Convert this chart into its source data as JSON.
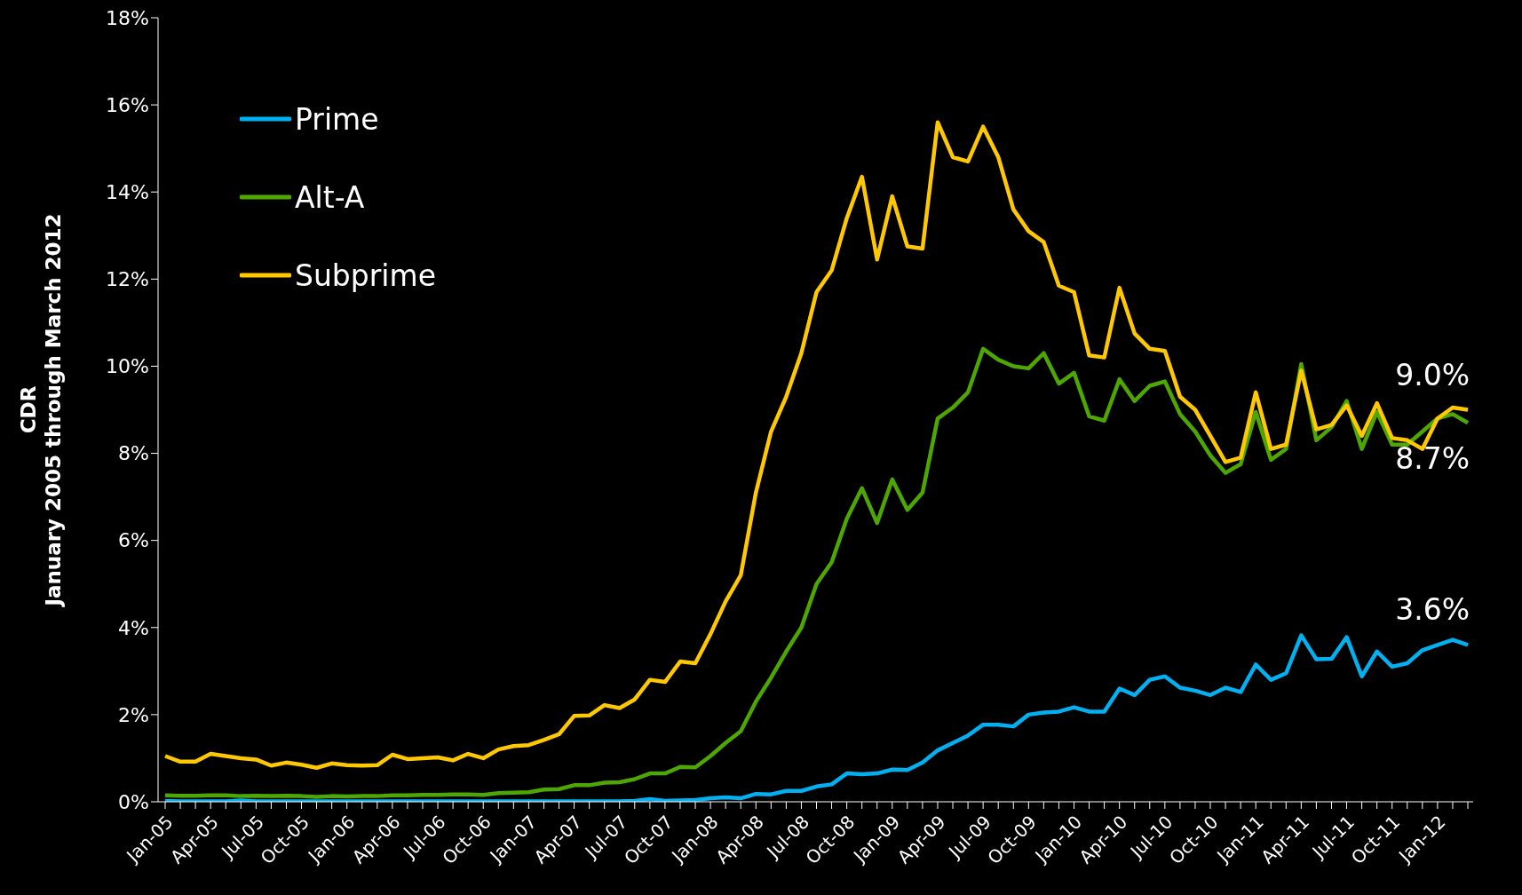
{
  "chart_data": {
    "type": "line",
    "ylabel": "CDR\nJanuary 2005 through March 2012",
    "categories": [
      "Jan-05",
      null,
      null,
      "Apr-05",
      null,
      null,
      "Jul-05",
      null,
      null,
      "Oct-05",
      null,
      null,
      "Jan-06",
      null,
      null,
      "Apr-06",
      null,
      null,
      "Jul-06",
      null,
      null,
      "Oct-06",
      null,
      null,
      "Jan-07",
      null,
      null,
      "Apr-07",
      null,
      null,
      "Jul-07",
      null,
      null,
      "Oct-07",
      null,
      null,
      "Jan-08",
      null,
      null,
      "Apr-08",
      null,
      null,
      "Jul-08",
      null,
      null,
      "Oct-08",
      null,
      null,
      "Jan-09",
      null,
      null,
      "Apr-09",
      null,
      null,
      "Jul-09",
      null,
      null,
      "Oct-09",
      null,
      null,
      "Jan-10",
      null,
      null,
      "Apr-10",
      null,
      null,
      "Jul-10",
      null,
      null,
      "Oct-10",
      null,
      null,
      "Jan-11",
      null,
      null,
      "Apr-11",
      null,
      null,
      "Jul-11",
      null,
      null,
      "Oct-11",
      null,
      null,
      "Jan-12",
      null,
      null
    ],
    "series": [
      {
        "name": "Prime",
        "color": "#00b0f0",
        "values": [
          0.02,
          0.01,
          0.01,
          0.01,
          0.01,
          0.03,
          0.01,
          0.01,
          0.01,
          0.01,
          0.01,
          0.01,
          0.01,
          0.01,
          0.01,
          0.01,
          0.01,
          0.01,
          0.01,
          0.01,
          0.01,
          0.01,
          0.01,
          0.01,
          0.01,
          0.01,
          0.01,
          0.01,
          0.01,
          0.01,
          0.01,
          0.02,
          0.06,
          0.02,
          0.03,
          0.04,
          0.08,
          0.1,
          0.08,
          0.18,
          0.17,
          0.25,
          0.25,
          0.35,
          0.4,
          0.65,
          0.63,
          0.65,
          0.74,
          0.73,
          0.9,
          1.18,
          1.35,
          1.52,
          1.77,
          1.77,
          1.73,
          2.0,
          2.05,
          2.07,
          2.17,
          2.07,
          2.07,
          2.6,
          2.45,
          2.8,
          2.88,
          2.62,
          2.55,
          2.45,
          2.62,
          2.52,
          3.15,
          2.8,
          2.95,
          3.82,
          3.27,
          3.28,
          3.78,
          2.88,
          3.45,
          3.1,
          3.18,
          3.48,
          3.6,
          3.72,
          3.6
        ],
        "value_labels": [
          null,
          null,
          null,
          null,
          null,
          null,
          null,
          null,
          null,
          null,
          null,
          null,
          null,
          null,
          null,
          null,
          null,
          null,
          null,
          null,
          null,
          null,
          null,
          null,
          null,
          null,
          null,
          null,
          null,
          null,
          null,
          null,
          null,
          null,
          null,
          null,
          null,
          null,
          null,
          null,
          null,
          null,
          null,
          null,
          null,
          null,
          null,
          null,
          null,
          null,
          null,
          null,
          null,
          null,
          null,
          null,
          null,
          null,
          null,
          null,
          null,
          null,
          null,
          null,
          null,
          null,
          null,
          null,
          null,
          null,
          null,
          null,
          null,
          null,
          null,
          null,
          null,
          null,
          null,
          null,
          null,
          null,
          null,
          null,
          null,
          null,
          "3.6%"
        ]
      },
      {
        "name": "Alt-A",
        "color": "#4ea600",
        "values": [
          0.15,
          0.14,
          0.14,
          0.15,
          0.15,
          0.13,
          0.14,
          0.13,
          0.14,
          0.13,
          0.11,
          0.13,
          0.12,
          0.13,
          0.13,
          0.15,
          0.15,
          0.16,
          0.16,
          0.17,
          0.17,
          0.16,
          0.2,
          0.21,
          0.22,
          0.28,
          0.29,
          0.38,
          0.38,
          0.44,
          0.45,
          0.52,
          0.65,
          0.65,
          0.8,
          0.79,
          1.05,
          1.35,
          1.62,
          2.3,
          2.85,
          3.45,
          4.0,
          5.0,
          5.5,
          6.5,
          7.2,
          6.4,
          7.4,
          6.7,
          7.1,
          8.8,
          9.05,
          9.4,
          10.4,
          10.15,
          10.0,
          9.95,
          10.3,
          9.6,
          9.85,
          8.85,
          8.75,
          9.7,
          9.2,
          9.55,
          9.65,
          8.9,
          8.5,
          7.95,
          7.55,
          7.75,
          8.95,
          7.85,
          8.1,
          10.05,
          8.3,
          8.6,
          9.2,
          8.1,
          8.95,
          8.2,
          8.2,
          8.5,
          8.8,
          8.9,
          8.7
        ],
        "value_labels": [
          null,
          null,
          null,
          null,
          null,
          null,
          null,
          null,
          null,
          null,
          null,
          null,
          null,
          null,
          null,
          null,
          null,
          null,
          null,
          null,
          null,
          null,
          null,
          null,
          null,
          null,
          null,
          null,
          null,
          null,
          null,
          null,
          null,
          null,
          null,
          null,
          null,
          null,
          null,
          null,
          null,
          null,
          null,
          null,
          null,
          null,
          null,
          null,
          null,
          null,
          null,
          null,
          null,
          null,
          null,
          null,
          null,
          null,
          null,
          null,
          null,
          null,
          null,
          null,
          null,
          null,
          null,
          null,
          null,
          null,
          null,
          null,
          null,
          null,
          null,
          null,
          null,
          null,
          null,
          null,
          null,
          null,
          null,
          null,
          null,
          null,
          "8.7%"
        ]
      },
      {
        "name": "Subprime",
        "color": "#ffc800",
        "values": [
          1.05,
          0.92,
          0.92,
          1.1,
          1.05,
          1.0,
          0.97,
          0.83,
          0.9,
          0.85,
          0.78,
          0.88,
          0.84,
          0.83,
          0.84,
          1.08,
          0.98,
          1.0,
          1.02,
          0.95,
          1.1,
          1.0,
          1.2,
          1.28,
          1.3,
          1.42,
          1.55,
          1.97,
          1.98,
          2.22,
          2.15,
          2.35,
          2.8,
          2.75,
          3.22,
          3.18,
          3.85,
          4.6,
          5.2,
          7.1,
          8.5,
          9.3,
          10.3,
          11.7,
          12.2,
          13.4,
          14.35,
          12.45,
          13.9,
          12.75,
          12.7,
          15.6,
          14.8,
          14.7,
          15.5,
          14.8,
          13.6,
          13.1,
          12.85,
          11.85,
          11.7,
          10.25,
          10.2,
          11.8,
          10.75,
          10.4,
          10.35,
          9.3,
          9.0,
          8.4,
          7.8,
          7.9,
          9.4,
          8.1,
          8.2,
          9.9,
          8.55,
          8.65,
          9.1,
          8.4,
          9.15,
          8.35,
          8.3,
          8.1,
          8.8,
          9.05,
          9.0
        ],
        "value_labels": [
          null,
          null,
          null,
          null,
          null,
          null,
          null,
          null,
          null,
          null,
          null,
          null,
          null,
          null,
          null,
          null,
          null,
          null,
          null,
          null,
          null,
          null,
          null,
          null,
          null,
          null,
          null,
          null,
          null,
          null,
          null,
          null,
          null,
          null,
          null,
          null,
          null,
          null,
          null,
          null,
          null,
          null,
          null,
          null,
          null,
          null,
          null,
          null,
          null,
          null,
          null,
          null,
          null,
          null,
          null,
          null,
          null,
          null,
          null,
          null,
          null,
          null,
          null,
          null,
          null,
          null,
          null,
          null,
          null,
          null,
          null,
          null,
          null,
          null,
          null,
          null,
          null,
          null,
          null,
          null,
          null,
          null,
          null,
          null,
          null,
          null,
          "9.0%"
        ]
      }
    ],
    "ylim": [
      0,
      18
    ],
    "yticks": [
      {
        "value": 0,
        "label": "0%"
      },
      {
        "value": 2,
        "label": "2%"
      },
      {
        "value": 4,
        "label": "4%"
      },
      {
        "value": 6,
        "label": "6%"
      },
      {
        "value": 8,
        "label": "8%"
      },
      {
        "value": 10,
        "label": "10%"
      },
      {
        "value": 12,
        "label": "12%"
      },
      {
        "value": 14,
        "label": "14%"
      },
      {
        "value": 16,
        "label": "16%"
      },
      {
        "value": 18,
        "label": "18%"
      }
    ],
    "grid": false,
    "legend": "top left",
    "marker": "none",
    "line_style": "solid"
  }
}
